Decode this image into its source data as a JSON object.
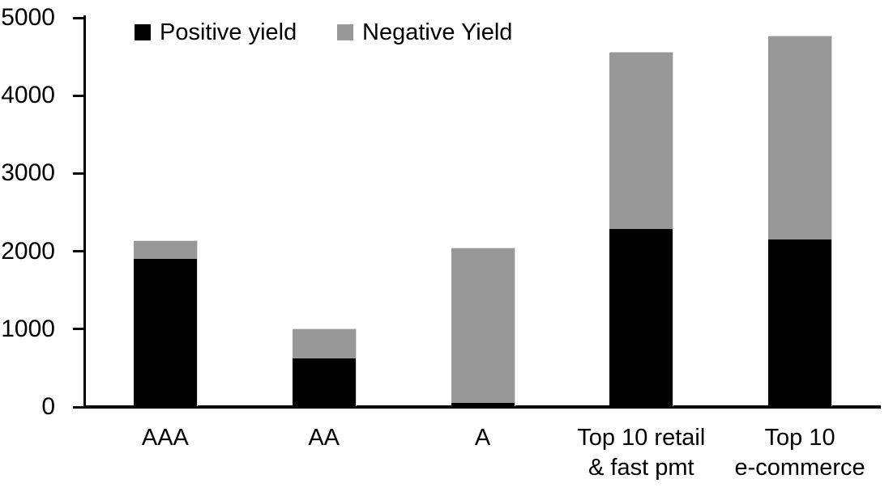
{
  "chart_data": {
    "type": "bar",
    "stacked": true,
    "title": "",
    "xlabel": "",
    "ylabel": "",
    "categories": [
      "AAA",
      "AA",
      "A",
      "Top 10 retail & fast pmt",
      "Top 10 e-commerce"
    ],
    "category_label_lines": [
      [
        "AAA"
      ],
      [
        "AA"
      ],
      [
        "A"
      ],
      [
        "Top 10 retail",
        "& fast pmt"
      ],
      [
        "Top 10",
        "e-commerce"
      ]
    ],
    "series": [
      {
        "name": "Positive yield",
        "color": "#000000",
        "values": [
          1900,
          620,
          50,
          2290,
          2150
        ]
      },
      {
        "name": "Negative Yield",
        "color": "#989898",
        "values": [
          230,
          380,
          1990,
          2260,
          2610
        ]
      }
    ],
    "stack_totals": [
      2130,
      1000,
      2040,
      4550,
      4760
    ],
    "ylim": [
      0,
      5000
    ],
    "yticks": [
      0,
      1000,
      2000,
      3000,
      4000,
      5000
    ],
    "grid": false,
    "legend_position": "top"
  }
}
